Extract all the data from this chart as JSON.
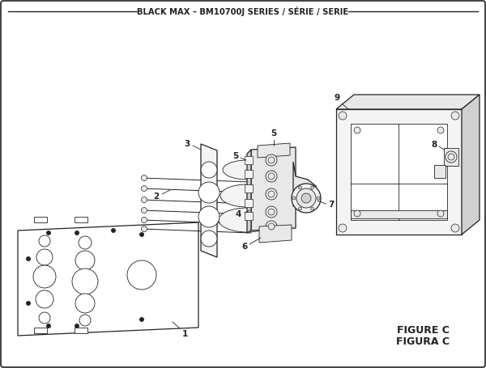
{
  "title": "BLACK MAX – BM10700J SERIES / SÉRIE / SERIE",
  "figure_label": "FIGURE C",
  "figura_label": "FIGURA C",
  "bg_color": "#ffffff",
  "line_color": "#222222",
  "text_color": "#222222",
  "fill_white": "#ffffff",
  "fill_light": "#f4f4f4",
  "fill_mid": "#e8e8e8",
  "fill_dark": "#d0d0d0",
  "fig_width": 6.0,
  "fig_height": 4.55,
  "dpi": 100
}
